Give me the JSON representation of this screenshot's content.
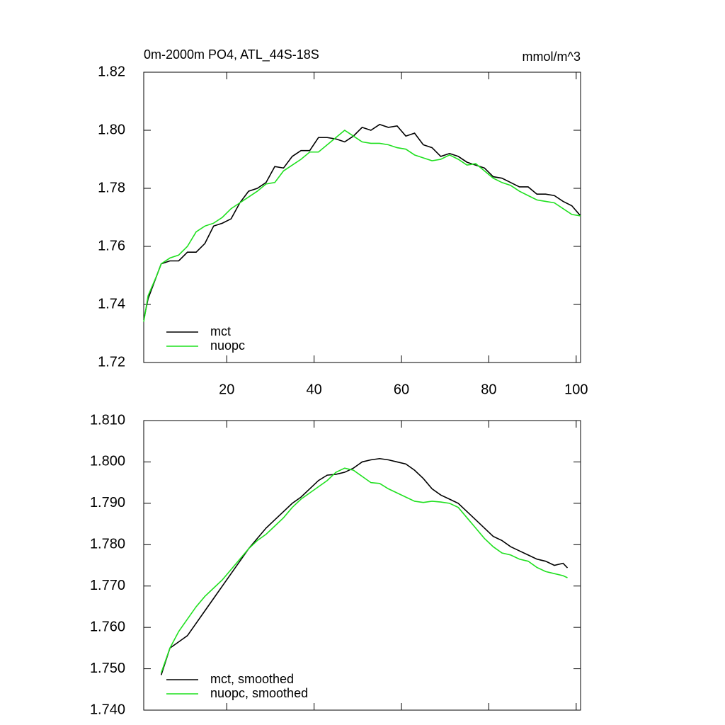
{
  "chart_data": [
    {
      "type": "line",
      "title": "0m-2000m PO4, ATL_44S-18S",
      "annotation": "mmol/m^3",
      "xlim": [
        1,
        101
      ],
      "xticks": [
        20,
        40,
        60,
        80,
        100
      ],
      "ylim": [
        1.72,
        1.82
      ],
      "yticks": [
        1.72,
        1.74,
        1.76,
        1.78,
        {
          "value": 1.8,
          "label": "1.80"
        },
        1.82
      ],
      "legend": "lower left",
      "x": [
        1,
        2,
        4,
        5,
        7,
        9,
        11,
        13,
        15,
        17,
        19,
        21,
        23,
        25,
        27,
        29,
        31,
        33,
        35,
        37,
        39,
        41,
        43,
        45,
        47,
        49,
        51,
        53,
        55,
        57,
        59,
        61,
        63,
        65,
        67,
        69,
        71,
        73,
        75,
        77,
        79,
        81,
        83,
        85,
        87,
        89,
        91,
        93,
        95,
        97,
        99,
        101
      ],
      "series": [
        {
          "name": "mct",
          "color": "#000000",
          "values": [
            1.7347,
            1.742,
            1.75,
            1.754,
            1.755,
            1.755,
            1.758,
            1.758,
            1.761,
            1.767,
            1.768,
            1.7695,
            1.775,
            1.779,
            1.78,
            1.782,
            1.7875,
            1.787,
            1.791,
            1.793,
            1.793,
            1.7975,
            1.7975,
            1.797,
            1.796,
            1.798,
            1.801,
            1.8,
            1.802,
            1.801,
            1.8015,
            1.798,
            1.799,
            1.795,
            1.794,
            1.791,
            1.792,
            1.791,
            1.789,
            1.788,
            1.787,
            1.784,
            1.7835,
            1.782,
            1.7805,
            1.7805,
            1.778,
            1.778,
            1.7775,
            1.7755,
            1.774,
            1.7705
          ]
        },
        {
          "name": "nuopc",
          "color": "#1fe01f",
          "values": [
            1.734,
            1.743,
            1.75,
            1.754,
            1.756,
            1.757,
            1.76,
            1.765,
            1.767,
            1.768,
            1.77,
            1.773,
            1.775,
            1.777,
            1.779,
            1.7815,
            1.782,
            1.786,
            1.788,
            1.79,
            1.7925,
            1.7925,
            1.795,
            1.7975,
            1.8,
            1.798,
            1.796,
            1.7955,
            1.7955,
            1.795,
            1.794,
            1.7935,
            1.7915,
            1.7905,
            1.7895,
            1.79,
            1.7915,
            1.79,
            1.788,
            1.7885,
            1.786,
            1.7835,
            1.782,
            1.781,
            1.779,
            1.7775,
            1.776,
            1.7755,
            1.775,
            1.773,
            1.771,
            1.7705
          ]
        }
      ]
    },
    {
      "type": "line",
      "xlim": [
        1,
        101
      ],
      "xticks": [
        20,
        40,
        60,
        80,
        100
      ],
      "show_xtick_labels": false,
      "ylim": [
        1.74,
        1.81
      ],
      "yticks": [
        {
          "value": 1.74,
          "label": "1.740"
        },
        {
          "value": 1.75,
          "label": "1.750"
        },
        {
          "value": 1.76,
          "label": "1.760"
        },
        {
          "value": 1.77,
          "label": "1.770"
        },
        {
          "value": 1.78,
          "label": "1.780"
        },
        {
          "value": 1.79,
          "label": "1.790"
        },
        {
          "value": 1.8,
          "label": "1.800"
        },
        {
          "value": 1.81,
          "label": "1.810"
        }
      ],
      "legend": "lower left",
      "x": [
        5,
        7,
        9,
        11,
        13,
        15,
        17,
        19,
        21,
        23,
        25,
        27,
        29,
        31,
        33,
        35,
        37,
        39,
        41,
        43,
        45,
        47,
        49,
        51,
        53,
        55,
        57,
        59,
        61,
        63,
        65,
        67,
        69,
        71,
        73,
        75,
        77,
        79,
        81,
        83,
        85,
        87,
        89,
        91,
        93,
        95,
        97,
        98
      ],
      "series": [
        {
          "name": "mct, smoothed",
          "color": "#000000",
          "values": [
            1.7485,
            1.755,
            1.7565,
            1.758,
            1.761,
            1.764,
            1.767,
            1.77,
            1.773,
            1.776,
            1.779,
            1.7815,
            1.784,
            1.786,
            1.788,
            1.79,
            1.7915,
            1.7935,
            1.7955,
            1.7968,
            1.797,
            1.7975,
            1.7985,
            1.8,
            1.8005,
            1.8008,
            1.8005,
            1.8,
            1.7995,
            1.798,
            1.796,
            1.7935,
            1.792,
            1.791,
            1.79,
            1.788,
            1.786,
            1.784,
            1.782,
            1.781,
            1.7795,
            1.7785,
            1.7775,
            1.7765,
            1.776,
            1.775,
            1.7755,
            1.7744
          ]
        },
        {
          "name": "nuopc, smoothed",
          "color": "#1fe01f",
          "values": [
            1.749,
            1.755,
            1.759,
            1.762,
            1.765,
            1.7675,
            1.7695,
            1.7715,
            1.774,
            1.7765,
            1.779,
            1.781,
            1.7825,
            1.7845,
            1.7865,
            1.789,
            1.791,
            1.7925,
            1.794,
            1.7955,
            1.7975,
            1.7985,
            1.798,
            1.7965,
            1.795,
            1.7948,
            1.7935,
            1.7925,
            1.7915,
            1.7905,
            1.7902,
            1.7905,
            1.7903,
            1.79,
            1.789,
            1.7865,
            1.784,
            1.7815,
            1.7795,
            1.778,
            1.7775,
            1.7765,
            1.776,
            1.7745,
            1.7735,
            1.773,
            1.7725,
            1.772
          ]
        }
      ]
    }
  ]
}
